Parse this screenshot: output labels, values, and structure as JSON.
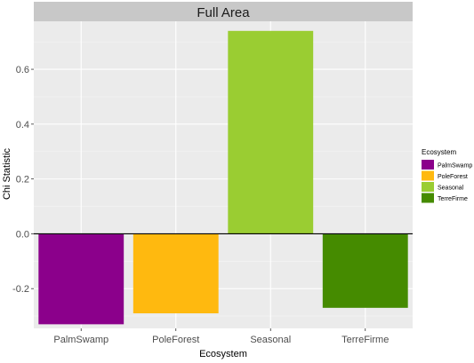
{
  "chart_data": {
    "type": "bar",
    "facet_title": "Full Area",
    "xlabel": "Ecosystem",
    "ylabel": "Chi Statistic",
    "categories": [
      "PalmSwamp",
      "PoleForest",
      "Seasonal",
      "TerreFirme"
    ],
    "values": [
      -0.33,
      -0.29,
      0.74,
      -0.27
    ],
    "colors": [
      "#8B008B",
      "#FFB90F",
      "#9ACD32",
      "#458B00"
    ],
    "y_ticks": [
      -0.2,
      0.0,
      0.2,
      0.4,
      0.6
    ],
    "y_tick_labels": [
      "-0.2",
      "0.0",
      "0.2",
      "0.4",
      "0.6"
    ],
    "ylim": [
      -0.345,
      0.775
    ],
    "grid": true,
    "legend": {
      "title": "Ecosystem",
      "placement": "right",
      "entries": [
        "PalmSwamp",
        "PoleForest",
        "Seasonal",
        "TerreFirme"
      ]
    }
  }
}
